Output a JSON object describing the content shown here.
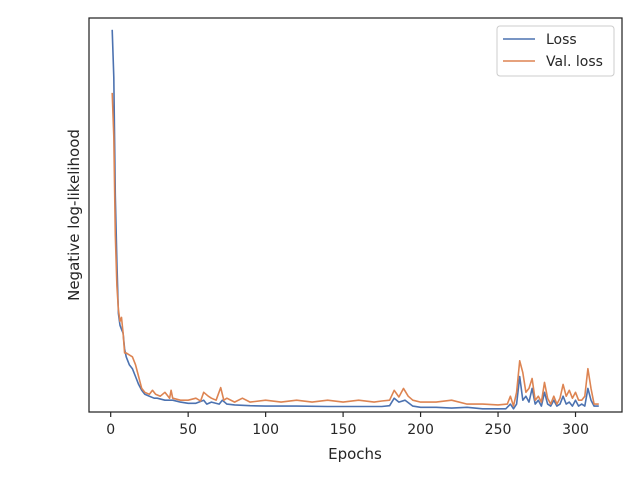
{
  "chart_data": {
    "type": "line",
    "xlabel": "Epochs",
    "ylabel": "Negative log-likelihood",
    "xlim": [
      -14,
      330
    ],
    "ylim": [
      0,
      1
    ],
    "x_ticks": [
      0,
      50,
      100,
      150,
      200,
      250,
      300
    ],
    "y_ticks_shown": false,
    "grid": false,
    "legend_position": "top-right",
    "colors": {
      "loss": "#4c72b0",
      "val_loss": "#dd8452",
      "axis": "#262626"
    },
    "series": [
      {
        "name": "Loss",
        "key": "loss",
        "points": [
          [
            1,
            0.97
          ],
          [
            2,
            0.85
          ],
          [
            3,
            0.55
          ],
          [
            4,
            0.38
          ],
          [
            5,
            0.25
          ],
          [
            6,
            0.22
          ],
          [
            7,
            0.21
          ],
          [
            8,
            0.2
          ],
          [
            9,
            0.16
          ],
          [
            10,
            0.14
          ],
          [
            12,
            0.12
          ],
          [
            14,
            0.11
          ],
          [
            16,
            0.09
          ],
          [
            18,
            0.07
          ],
          [
            20,
            0.055
          ],
          [
            22,
            0.045
          ],
          [
            25,
            0.04
          ],
          [
            28,
            0.035
          ],
          [
            30,
            0.035
          ],
          [
            35,
            0.03
          ],
          [
            40,
            0.03
          ],
          [
            45,
            0.025
          ],
          [
            50,
            0.022
          ],
          [
            55,
            0.022
          ],
          [
            60,
            0.03
          ],
          [
            62,
            0.02
          ],
          [
            65,
            0.025
          ],
          [
            70,
            0.02
          ],
          [
            72,
            0.03
          ],
          [
            75,
            0.02
          ],
          [
            80,
            0.018
          ],
          [
            90,
            0.016
          ],
          [
            100,
            0.015
          ],
          [
            120,
            0.015
          ],
          [
            140,
            0.014
          ],
          [
            160,
            0.014
          ],
          [
            175,
            0.014
          ],
          [
            180,
            0.016
          ],
          [
            183,
            0.035
          ],
          [
            186,
            0.025
          ],
          [
            190,
            0.03
          ],
          [
            195,
            0.015
          ],
          [
            200,
            0.012
          ],
          [
            210,
            0.012
          ],
          [
            220,
            0.01
          ],
          [
            230,
            0.012
          ],
          [
            240,
            0.008
          ],
          [
            250,
            0.008
          ],
          [
            255,
            0.008
          ],
          [
            258,
            0.02
          ],
          [
            260,
            0.008
          ],
          [
            262,
            0.02
          ],
          [
            264,
            0.09
          ],
          [
            266,
            0.03
          ],
          [
            268,
            0.04
          ],
          [
            270,
            0.025
          ],
          [
            272,
            0.06
          ],
          [
            274,
            0.02
          ],
          [
            276,
            0.03
          ],
          [
            278,
            0.015
          ],
          [
            280,
            0.05
          ],
          [
            282,
            0.02
          ],
          [
            284,
            0.015
          ],
          [
            286,
            0.03
          ],
          [
            288,
            0.015
          ],
          [
            290,
            0.02
          ],
          [
            292,
            0.04
          ],
          [
            294,
            0.02
          ],
          [
            296,
            0.025
          ],
          [
            298,
            0.015
          ],
          [
            300,
            0.03
          ],
          [
            302,
            0.015
          ],
          [
            304,
            0.02
          ],
          [
            306,
            0.015
          ],
          [
            308,
            0.06
          ],
          [
            310,
            0.03
          ],
          [
            312,
            0.015
          ],
          [
            315,
            0.015
          ]
        ]
      },
      {
        "name": "Val. loss",
        "key": "val_loss",
        "points": [
          [
            1,
            0.81
          ],
          [
            2,
            0.7
          ],
          [
            3,
            0.45
          ],
          [
            4,
            0.32
          ],
          [
            5,
            0.26
          ],
          [
            6,
            0.23
          ],
          [
            7,
            0.24
          ],
          [
            8,
            0.2
          ],
          [
            9,
            0.15
          ],
          [
            10,
            0.15
          ],
          [
            12,
            0.145
          ],
          [
            14,
            0.14
          ],
          [
            16,
            0.12
          ],
          [
            18,
            0.09
          ],
          [
            20,
            0.06
          ],
          [
            22,
            0.05
          ],
          [
            25,
            0.045
          ],
          [
            27,
            0.055
          ],
          [
            29,
            0.045
          ],
          [
            32,
            0.04
          ],
          [
            35,
            0.05
          ],
          [
            38,
            0.035
          ],
          [
            39,
            0.055
          ],
          [
            40,
            0.035
          ],
          [
            45,
            0.03
          ],
          [
            50,
            0.03
          ],
          [
            55,
            0.035
          ],
          [
            58,
            0.028
          ],
          [
            60,
            0.05
          ],
          [
            63,
            0.04
          ],
          [
            65,
            0.035
          ],
          [
            68,
            0.03
          ],
          [
            71,
            0.062
          ],
          [
            73,
            0.03
          ],
          [
            75,
            0.035
          ],
          [
            80,
            0.025
          ],
          [
            85,
            0.035
          ],
          [
            90,
            0.025
          ],
          [
            100,
            0.03
          ],
          [
            110,
            0.025
          ],
          [
            120,
            0.03
          ],
          [
            130,
            0.025
          ],
          [
            140,
            0.03
          ],
          [
            150,
            0.025
          ],
          [
            160,
            0.03
          ],
          [
            170,
            0.025
          ],
          [
            175,
            0.028
          ],
          [
            180,
            0.03
          ],
          [
            183,
            0.055
          ],
          [
            186,
            0.038
          ],
          [
            189,
            0.06
          ],
          [
            192,
            0.04
          ],
          [
            195,
            0.03
          ],
          [
            200,
            0.025
          ],
          [
            210,
            0.025
          ],
          [
            220,
            0.03
          ],
          [
            230,
            0.02
          ],
          [
            240,
            0.02
          ],
          [
            250,
            0.018
          ],
          [
            256,
            0.02
          ],
          [
            258,
            0.04
          ],
          [
            260,
            0.015
          ],
          [
            262,
            0.05
          ],
          [
            264,
            0.13
          ],
          [
            266,
            0.1
          ],
          [
            268,
            0.05
          ],
          [
            270,
            0.06
          ],
          [
            272,
            0.085
          ],
          [
            274,
            0.03
          ],
          [
            276,
            0.04
          ],
          [
            278,
            0.025
          ],
          [
            280,
            0.075
          ],
          [
            282,
            0.035
          ],
          [
            284,
            0.02
          ],
          [
            286,
            0.04
          ],
          [
            288,
            0.02
          ],
          [
            290,
            0.035
          ],
          [
            292,
            0.07
          ],
          [
            294,
            0.04
          ],
          [
            296,
            0.055
          ],
          [
            298,
            0.035
          ],
          [
            300,
            0.05
          ],
          [
            302,
            0.03
          ],
          [
            304,
            0.03
          ],
          [
            306,
            0.04
          ],
          [
            308,
            0.11
          ],
          [
            310,
            0.06
          ],
          [
            312,
            0.02
          ],
          [
            315,
            0.02
          ]
        ]
      }
    ]
  }
}
